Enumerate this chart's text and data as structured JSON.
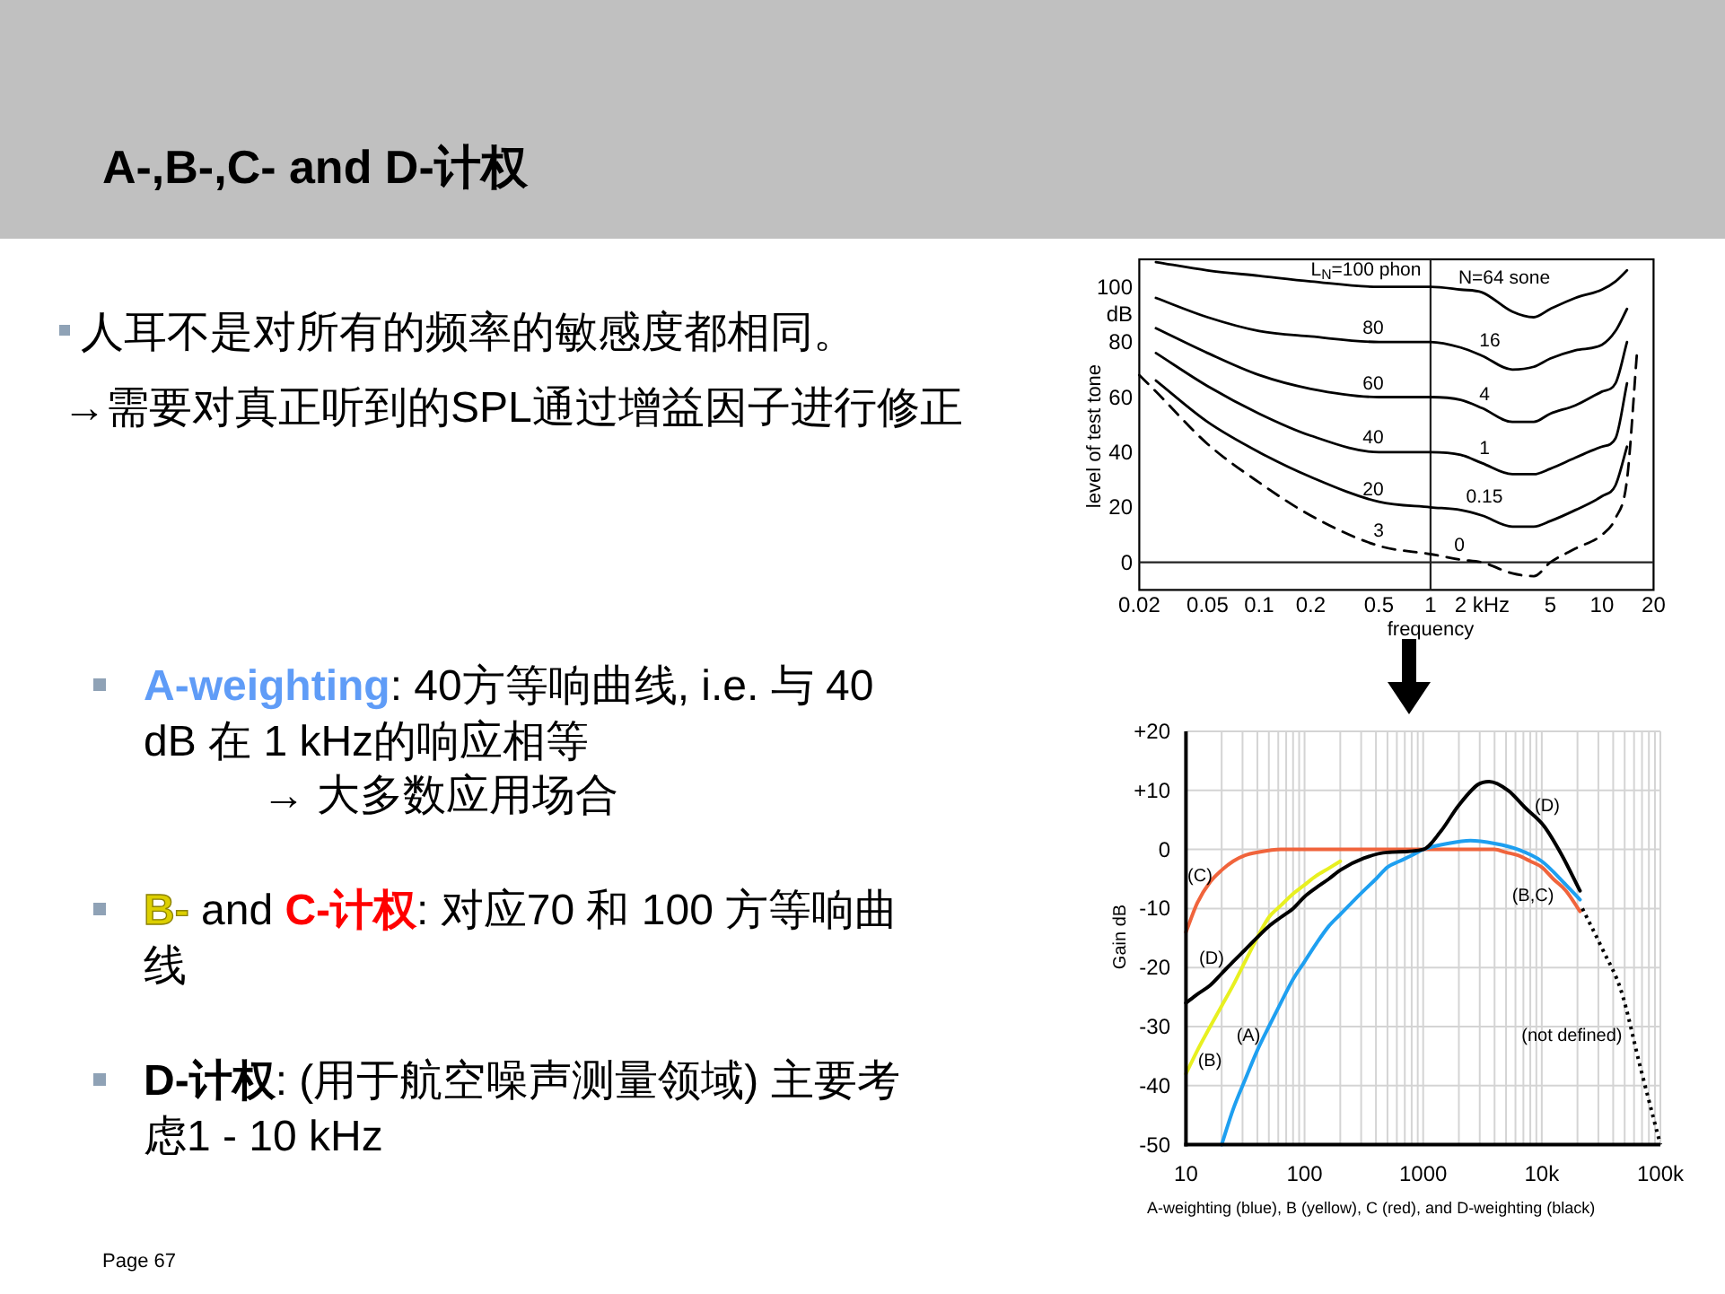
{
  "chart_data": [
    {
      "type": "other",
      "title": "A-,B-,C- and D-计权",
      "annotations": [
        "人耳不是对所有的频率的敏感度都相同。",
        "→需要对真正听到的SPL通过增益因子进行修正",
        "**A-weighting**: 40方等响曲线, i.e. 与 40 dB 在 1 kHz的响应相等",
        "→ 大多数应用场合",
        "**B-** and **C-计权**: 对应70 和 100 方等响曲线",
        "**D-计权**: (用于航空噪声测量领域) 主要考虑1 - 10 kHz",
        "Page 67"
      ]
    },
    {
      "type": "line",
      "xlabel": "frequency",
      "ylabel": "level of test tone",
      "log": "x",
      "xlim": [
        0.02,
        20
      ],
      "ylim": [
        -10,
        110
      ],
      "xticks": [
        0.02,
        0.05,
        0.1,
        0.2,
        0.5,
        1,
        {
          "value": 2,
          "label": "2 kHz"
        },
        5,
        10,
        20
      ],
      "yticks": [
        0,
        20,
        40,
        60,
        80,
        {
          "value": 90,
          "label": "dB"
        },
        100
      ],
      "line_style": "solid",
      "x": [
        0.025,
        0.05,
        0.1,
        0.2,
        0.5,
        1,
        1.5,
        2,
        3,
        4,
        5,
        7,
        10,
        12,
        14
      ],
      "series": [
        {
          "color": "#000000",
          "values": [
            109,
            106,
            104,
            102,
            100,
            100,
            99,
            98,
            91,
            89,
            92,
            96,
            99,
            102,
            106
          ]
        },
        {
          "color": "#000000",
          "values": [
            96,
            89,
            84,
            82,
            80,
            80,
            78,
            75,
            70,
            71,
            74,
            77,
            79,
            84,
            92
          ]
        },
        {
          "color": "#000000",
          "values": [
            85,
            76,
            68,
            63,
            60,
            60,
            59,
            56,
            51,
            51,
            54,
            57,
            62,
            65,
            80
          ]
        },
        {
          "color": "#000000",
          "values": [
            76,
            64,
            54,
            46,
            40,
            40,
            39,
            36,
            32,
            32,
            34,
            38,
            42,
            45,
            65
          ]
        },
        {
          "color": "#000000",
          "values": [
            66,
            51,
            40,
            31,
            22,
            20,
            19,
            17,
            13,
            13,
            15,
            19,
            24,
            28,
            42
          ]
        },
        {
          "color": "#000000",
          "line_style": "dashed",
          "x": [
            0.02,
            0.025,
            0.05,
            0.1,
            0.2,
            0.5,
            1,
            1.5,
            2,
            3,
            4,
            5,
            7,
            10,
            12,
            14,
            16
          ],
          "values": [
            68,
            62,
            43,
            29,
            17,
            6,
            3,
            1,
            0,
            -4,
            -5,
            0,
            5,
            10,
            16,
            30,
            76
          ]
        }
      ],
      "ref_lines": [
        {
          "axis": "x",
          "value": 1
        },
        {
          "axis": "y",
          "value": 0
        }
      ],
      "annotations": [
        "L$_{N}$=100 phon",
        "N=64 sone",
        "80",
        "16",
        "60",
        "4",
        "40",
        "1",
        "20",
        "0.15",
        "3",
        "0"
      ]
    },
    {
      "type": "line",
      "ylabel": "Gain dB",
      "log": "x",
      "xlim": [
        10,
        100000
      ],
      "ylim": [
        -50,
        20
      ],
      "grid": true,
      "line_style": "solid",
      "xticks": [
        10,
        {
          "value": 20,
          "label": null
        },
        {
          "value": 30,
          "label": null
        },
        {
          "value": 40,
          "label": null
        },
        {
          "value": 50,
          "label": null
        },
        {
          "value": 60,
          "label": null
        },
        {
          "value": 70,
          "label": null
        },
        {
          "value": 80,
          "label": null
        },
        {
          "value": 90,
          "label": null
        },
        100,
        {
          "value": 200,
          "label": null
        },
        {
          "value": 300,
          "label": null
        },
        {
          "value": 400,
          "label": null
        },
        {
          "value": 500,
          "label": null
        },
        {
          "value": 600,
          "label": null
        },
        {
          "value": 700,
          "label": null
        },
        {
          "value": 800,
          "label": null
        },
        {
          "value": 900,
          "label": null
        },
        1000,
        {
          "value": 2000,
          "label": null
        },
        {
          "value": 3000,
          "label": null
        },
        {
          "value": 4000,
          "label": null
        },
        {
          "value": 5000,
          "label": null
        },
        {
          "value": 6000,
          "label": null
        },
        {
          "value": 7000,
          "label": null
        },
        {
          "value": 8000,
          "label": null
        },
        {
          "value": 9000,
          "label": null
        },
        {
          "value": 10000,
          "label": "10k"
        },
        {
          "value": 20000,
          "label": null
        },
        {
          "value": 30000,
          "label": null
        },
        {
          "value": 40000,
          "label": null
        },
        {
          "value": 50000,
          "label": null
        },
        {
          "value": 60000,
          "label": null
        },
        {
          "value": 70000,
          "label": null
        },
        {
          "value": 80000,
          "label": null
        },
        {
          "value": 90000,
          "label": null
        },
        {
          "value": 100000,
          "label": "100k"
        }
      ],
      "yticks": [
        {
          "value": 20,
          "label": "+20"
        },
        {
          "value": 10,
          "label": "+10"
        },
        0,
        -10,
        -20,
        -30,
        -40,
        -50
      ],
      "series": [
        {
          "color": "#f0643c",
          "x": [
            10,
            12.5,
            16,
            20,
            25,
            31.5,
            40,
            63,
            100,
            200,
            1000,
            2000,
            4000,
            5000,
            6300,
            8000,
            10000,
            12500,
            16000,
            21000
          ],
          "values": [
            -14,
            -9,
            -5.5,
            -3.5,
            -2,
            -1,
            -0.5,
            0,
            0,
            0,
            0,
            0,
            0,
            -0.5,
            -1,
            -2,
            -3,
            -5,
            -7,
            -10.5
          ]
        },
        {
          "color": "#e8f020",
          "x": [
            10,
            12.5,
            16,
            20,
            25,
            31.5,
            50,
            63,
            80,
            100,
            125,
            160,
            200
          ],
          "values": [
            -38,
            -34,
            -30,
            -26.5,
            -23,
            -19,
            -11.5,
            -9.5,
            -7.5,
            -6,
            -4.5,
            -3.2,
            -2
          ]
        },
        {
          "color": "#1e9ff0",
          "x": [
            20,
            25,
            31.5,
            40,
            50,
            63,
            80,
            100,
            125,
            160,
            200,
            250,
            315,
            400,
            500,
            630,
            800,
            1000,
            1600,
            2500,
            4000,
            6300,
            10000,
            16000,
            21000
          ],
          "values": [
            -50,
            -44,
            -39,
            -34,
            -30,
            -26,
            -22,
            -19,
            -16,
            -13,
            -11,
            -9,
            -7,
            -5,
            -3,
            -2,
            -1,
            0,
            1,
            1.5,
            1,
            0,
            -2,
            -6,
            -8.5
          ]
        },
        {
          "color": "#000000",
          "x": [
            10,
            12.5,
            16,
            20,
            25,
            31.5,
            50,
            63,
            80,
            100,
            125,
            160,
            200,
            315,
            500,
            1000,
            1400,
            2000,
            2900,
            3600,
            5200,
            7300,
            10400,
            14800,
            21000
          ],
          "values": [
            -26,
            -24.5,
            -23,
            -21,
            -19,
            -17,
            -13,
            -11.5,
            -10,
            -8,
            -6.5,
            -5,
            -3.5,
            -1.5,
            -0.5,
            0,
            3,
            7.5,
            11,
            11.5,
            10,
            7,
            4,
            -1,
            -7
          ]
        },
        {
          "color": "#000000",
          "line_style": "dotted",
          "x": [
            22000,
            32700,
            46800,
            68000,
            100000
          ],
          "values": [
            -10,
            -17,
            -24,
            -37,
            -50
          ]
        }
      ],
      "annotations": [
        "(C)",
        "(D)",
        "(D)",
        "(B,C)",
        "(A)",
        "(B)",
        "(not defined)",
        "A-weighting (blue), B (yellow), C (red), and D-weighting (black)"
      ]
    }
  ]
}
